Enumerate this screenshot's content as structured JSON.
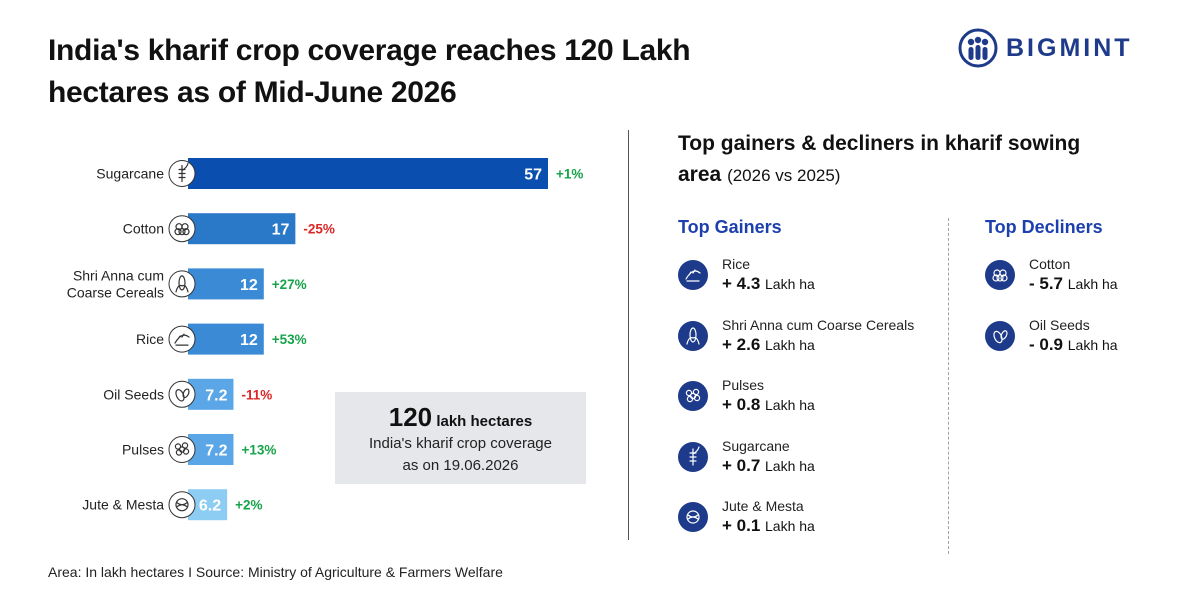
{
  "header": {
    "title": "India's kharif crop coverage reaches 120 Lakh hectares as of Mid-June 2026",
    "logo_text": "BIGMINT"
  },
  "chart_data": {
    "type": "bar",
    "orientation": "horizontal",
    "categories": [
      "Sugarcane",
      "Cotton",
      "Shri Anna cum Coarse Cereals",
      "Rice",
      "Oil Seeds",
      "Pulses",
      "Jute & Mesta"
    ],
    "category_lines": [
      [
        "Sugarcane"
      ],
      [
        "Cotton"
      ],
      [
        "Shri Anna cum",
        "Coarse Cereals"
      ],
      [
        "Rice"
      ],
      [
        "Oil Seeds"
      ],
      [
        "Pulses"
      ],
      [
        "Jute & Mesta"
      ]
    ],
    "values": [
      57,
      17,
      12,
      12,
      7.2,
      7.2,
      6.2
    ],
    "value_labels": [
      "57",
      "17",
      "12",
      "12",
      "7.2",
      "7.2",
      "6.2"
    ],
    "changes": [
      "+1%",
      "-25%",
      "+27%",
      "+53%",
      "-11%",
      "+13%",
      "+2%"
    ],
    "icons": [
      "sugarcane-icon",
      "cotton-icon",
      "corn-icon",
      "rice-icon",
      "oil-seeds-icon",
      "pulses-icon",
      "jute-icon"
    ],
    "bar_colors": [
      "#0a4fb0",
      "#2a78c8",
      "#3a8ad6",
      "#3a8ad6",
      "#5aa6e6",
      "#5aa6e6",
      "#8dcdf4"
    ],
    "positive_color": "#16a34a",
    "negative_color": "#dc2626",
    "xlim": [
      0,
      57
    ],
    "grid": false
  },
  "callout": {
    "value": "120",
    "unit": "lakh hectares",
    "line1": "India's kharif crop coverage",
    "line2": "as on 19.06.2026"
  },
  "right_panel": {
    "title": "Top gainers & decliners in kharif sowing area",
    "subtitle": "(2026 vs 2025)",
    "gainers_heading": "Top Gainers",
    "decliners_heading": "Top Decliners",
    "unit": "Lakh ha",
    "gainers": [
      {
        "name": "Rice",
        "value": "+ 4.3",
        "icon": "rice-icon"
      },
      {
        "name": "Shri Anna cum Coarse Cereals",
        "value": "+ 2.6",
        "icon": "corn-icon"
      },
      {
        "name": "Pulses",
        "value": "+ 0.8",
        "icon": "pulses-icon"
      },
      {
        "name": "Sugarcane",
        "value": "+ 0.7",
        "icon": "sugarcane-icon"
      },
      {
        "name": "Jute & Mesta",
        "value": "+ 0.1",
        "icon": "jute-icon"
      }
    ],
    "decliners": [
      {
        "name": "Cotton",
        "value": "- 5.7",
        "icon": "cotton-icon"
      },
      {
        "name": "Oil Seeds",
        "value": "- 0.9",
        "icon": "oil-seeds-icon"
      }
    ]
  },
  "footer": {
    "text": "Area: In lakh hectares  I  Source: Ministry of Agriculture & Farmers Welfare"
  }
}
